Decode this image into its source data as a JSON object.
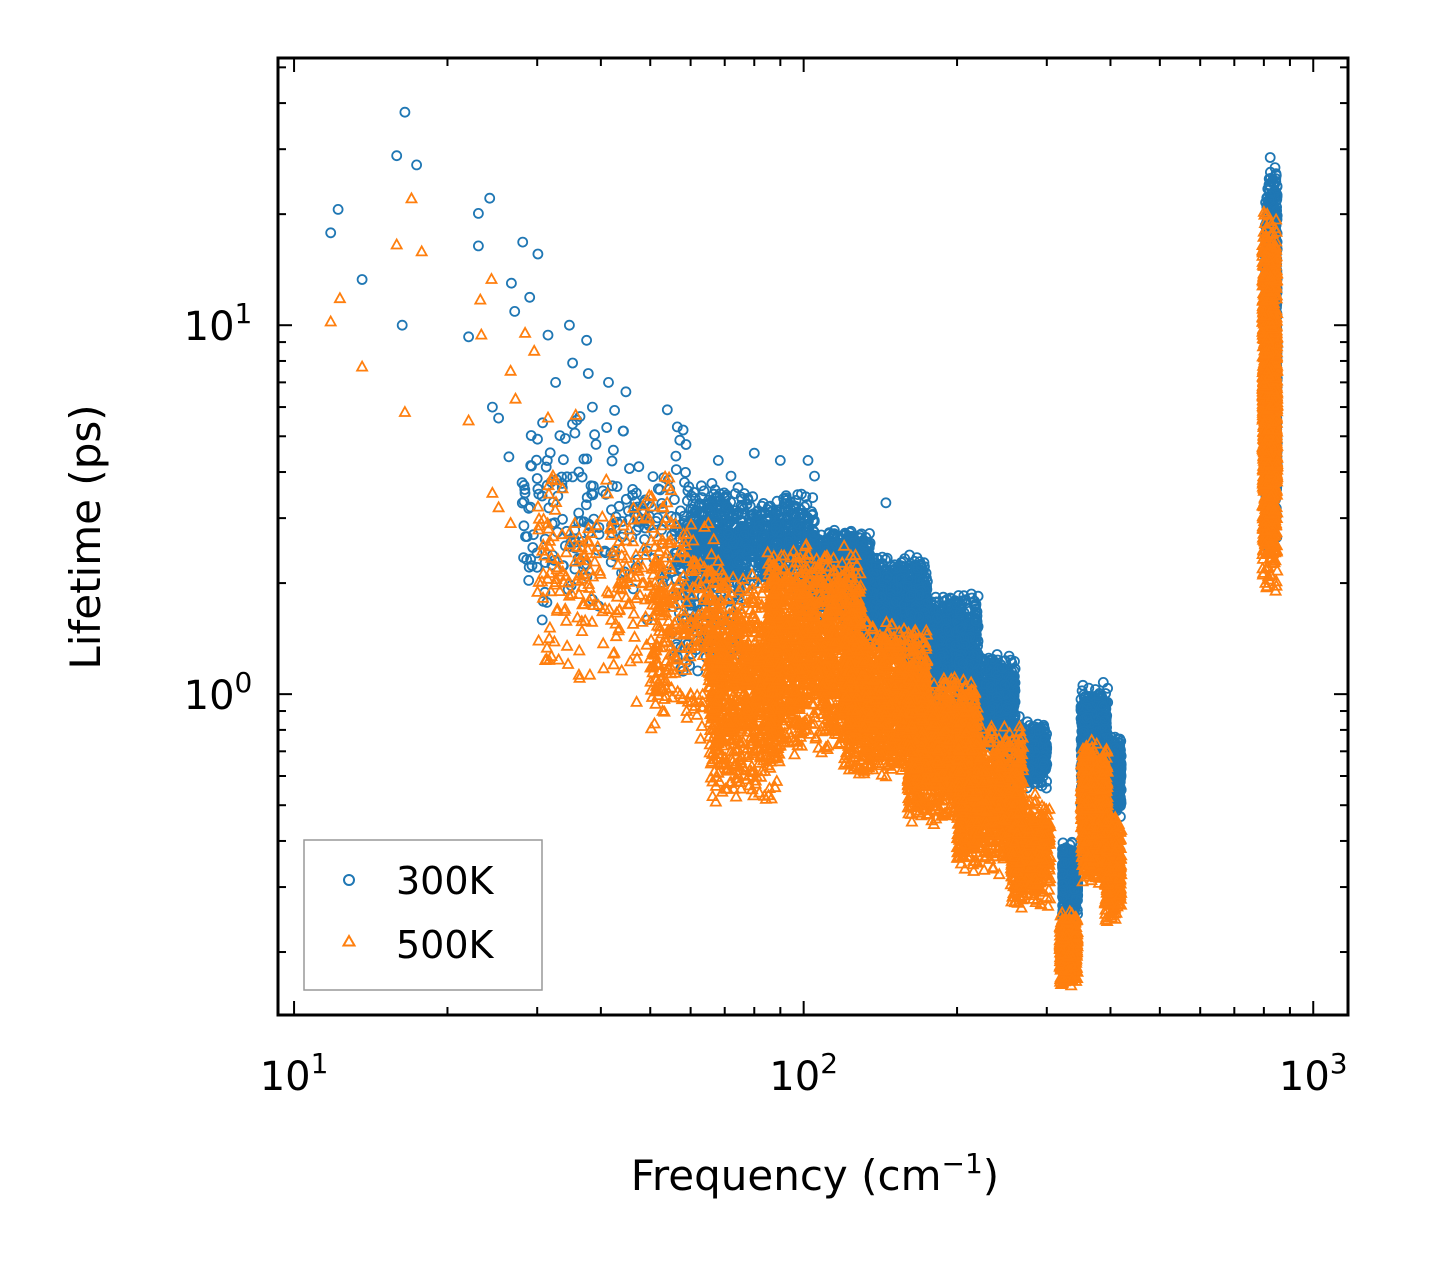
{
  "chart_data": {
    "type": "scatter",
    "title": "",
    "xlabel": "Frequency (cm",
    "xlabel_sup": "−1",
    "xlabel_end": ")",
    "ylabel": "Lifetime (ps)",
    "xscale": "log",
    "yscale": "log",
    "xlim": [
      9.3,
      1170
    ],
    "ylim": [
      0.135,
      53
    ],
    "x_ticks": [
      {
        "value": 10,
        "base": "10",
        "exp": "1"
      },
      {
        "value": 100,
        "base": "10",
        "exp": "2"
      },
      {
        "value": 1000,
        "base": "10",
        "exp": "3"
      }
    ],
    "y_ticks": [
      {
        "value": 1,
        "base": "10",
        "exp": "0"
      },
      {
        "value": 10,
        "base": "10",
        "exp": "1"
      }
    ],
    "legend": {
      "position": "lower-left"
    },
    "series": [
      {
        "name": "300K",
        "color": "#1f77b4",
        "marker": "circle",
        "points": [
          [
            11.8,
            17.8
          ],
          [
            12.2,
            20.6
          ],
          [
            13.6,
            13.3
          ],
          [
            15.9,
            28.8
          ],
          [
            16.5,
            37.8
          ],
          [
            17.4,
            27.2
          ],
          [
            16.3,
            10.0
          ],
          [
            22.0,
            9.3
          ],
          [
            23.0,
            20.1
          ],
          [
            23.0,
            16.4
          ],
          [
            24.2,
            22.1
          ],
          [
            24.5,
            6.0
          ],
          [
            25.2,
            5.6
          ],
          [
            26.4,
            4.4
          ],
          [
            26.7,
            13.0
          ],
          [
            27.1,
            10.9
          ],
          [
            28.1,
            16.8
          ],
          [
            29.0,
            11.9
          ],
          [
            30.1,
            15.6
          ],
          [
            31.5,
            9.4
          ],
          [
            32.6,
            7.0
          ],
          [
            34.7,
            10.0
          ],
          [
            35.2,
            7.9
          ],
          [
            37.5,
            9.1
          ],
          [
            37.8,
            7.4
          ],
          [
            38.5,
            6.0
          ],
          [
            41.4,
            7.0
          ],
          [
            44.8,
            6.6
          ],
          [
            54.0,
            5.9
          ],
          [
            56.5,
            5.3
          ],
          [
            58.0,
            5.2
          ],
          [
            68.0,
            4.3
          ],
          [
            72.0,
            3.9
          ],
          [
            80.0,
            4.5
          ],
          [
            90.0,
            4.3
          ],
          [
            102.0,
            4.3
          ],
          [
            105.0,
            3.9
          ],
          [
            145.0,
            3.3
          ],
          [
            160.0,
            2.2
          ],
          [
            175.0,
            1.8
          ],
          [
            200.0,
            1.35
          ],
          [
            240.0,
            0.93
          ],
          [
            265.0,
            0.87
          ],
          [
            285.0,
            0.7
          ]
        ],
        "clusters": [
          {
            "x": [
              28,
              60
            ],
            "y": [
              1.5,
              6.0
            ],
            "n": 220
          },
          {
            "x": [
              55,
              75
            ],
            "y": [
              1.0,
              4.0
            ],
            "n": 260
          },
          {
            "x": [
              60,
              105
            ],
            "y": [
              1.9,
              3.6
            ],
            "n": 900
          },
          {
            "x": [
              100,
              135
            ],
            "y": [
              1.6,
              2.8
            ],
            "n": 1200
          },
          {
            "x": [
              120,
              175
            ],
            "y": [
              1.3,
              2.4
            ],
            "n": 1300
          },
          {
            "x": [
              160,
              220
            ],
            "y": [
              0.95,
              1.9
            ],
            "n": 1300
          },
          {
            "x": [
              200,
              260
            ],
            "y": [
              0.7,
              1.3
            ],
            "n": 1000
          },
          {
            "x": [
              240,
              300
            ],
            "y": [
              0.55,
              0.85
            ],
            "n": 600
          },
          {
            "x": [
              322,
              345
            ],
            "y": [
              0.24,
              0.4
            ],
            "n": 400
          },
          {
            "x": [
              350,
              395
            ],
            "y": [
              0.45,
              1.1
            ],
            "n": 900
          },
          {
            "x": [
              390,
              420
            ],
            "y": [
              0.45,
              0.78
            ],
            "n": 500
          },
          {
            "x": [
              805,
              850
            ],
            "y": [
              2.4,
              29.0
            ],
            "n": 1500
          }
        ]
      },
      {
        "name": "500K",
        "color": "#ff7f0e",
        "marker": "triangle",
        "points": [
          [
            11.8,
            10.2
          ],
          [
            12.3,
            11.8
          ],
          [
            13.6,
            7.7
          ],
          [
            15.9,
            16.5
          ],
          [
            16.5,
            5.8
          ],
          [
            17.0,
            22.0
          ],
          [
            17.8,
            15.8
          ],
          [
            22.0,
            5.5
          ],
          [
            23.2,
            11.7
          ],
          [
            23.3,
            9.4
          ],
          [
            24.4,
            13.3
          ],
          [
            24.5,
            3.5
          ],
          [
            25.2,
            3.2
          ],
          [
            26.6,
            2.9
          ],
          [
            26.6,
            7.5
          ],
          [
            27.2,
            6.3
          ],
          [
            28.4,
            9.5
          ],
          [
            29.6,
            8.5
          ],
          [
            31.5,
            5.6
          ],
          [
            32.2,
            3.9
          ],
          [
            33.0,
            2.2
          ],
          [
            34.5,
            2.0
          ],
          [
            35.7,
            5.7
          ],
          [
            41.0,
            3.8
          ],
          [
            44.0,
            2.0
          ],
          [
            47.0,
            0.95
          ],
          [
            60.0,
            1.0
          ],
          [
            65.0,
            2.9
          ]
        ],
        "clusters": [
          {
            "x": [
              30,
              55
            ],
            "y": [
              1.0,
              4.2
            ],
            "n": 220
          },
          {
            "x": [
              50,
              70
            ],
            "y": [
              0.75,
              3.0
            ],
            "n": 300
          },
          {
            "x": [
              65,
              90
            ],
            "y": [
              0.5,
              2.2
            ],
            "n": 900
          },
          {
            "x": [
              85,
              130
            ],
            "y": [
              0.68,
              2.6
            ],
            "n": 1300
          },
          {
            "x": [
              120,
              175
            ],
            "y": [
              0.58,
              1.6
            ],
            "n": 1300
          },
          {
            "x": [
              160,
              220
            ],
            "y": [
              0.44,
              1.15
            ],
            "n": 1200
          },
          {
            "x": [
              200,
              270
            ],
            "y": [
              0.32,
              0.85
            ],
            "n": 1000
          },
          {
            "x": [
              255,
              305
            ],
            "y": [
              0.26,
              0.55
            ],
            "n": 500
          },
          {
            "x": [
              318,
              345
            ],
            "y": [
              0.16,
              0.26
            ],
            "n": 400
          },
          {
            "x": [
              350,
              395
            ],
            "y": [
              0.3,
              0.75
            ],
            "n": 900
          },
          {
            "x": [
              390,
              420
            ],
            "y": [
              0.24,
              0.48
            ],
            "n": 450
          },
          {
            "x": [
              795,
              850
            ],
            "y": [
              1.85,
              21.0
            ],
            "n": 1500
          }
        ]
      }
    ]
  }
}
